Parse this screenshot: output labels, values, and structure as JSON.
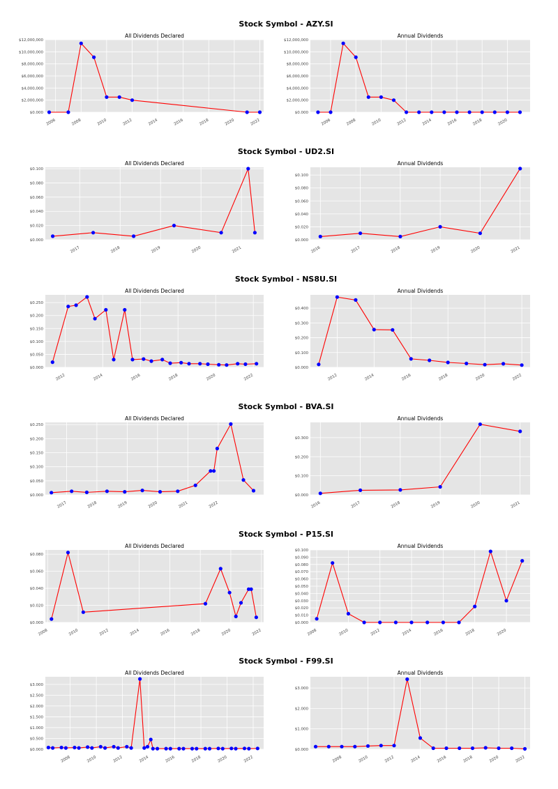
{
  "colors": {
    "panel_bg": "#e5e5e5",
    "grid": "#ffffff",
    "line": "#ff0000",
    "marker": "#0000ff"
  },
  "chart_data": [
    {
      "symbol_title": "Stock Symbol - AZY.SI",
      "panels": [
        {
          "type": "line",
          "title": "All Dividends Declared",
          "x_is_date": true,
          "x": [
            "2005-07-01",
            "2007-01-01",
            "2008-01-01",
            "2009-01-01",
            "2010-01-01",
            "2011-01-01",
            "2012-01-01",
            "2021-01-01",
            "2022-01-01"
          ],
          "y": [
            0,
            0,
            11400000,
            9100000,
            2500000,
            2500000,
            2000000,
            0,
            0
          ],
          "ylim": [
            0,
            12000000
          ],
          "yticks": [
            0,
            2000000,
            4000000,
            6000000,
            8000000,
            10000000,
            12000000
          ],
          "ytick_labels": [
            "$0.000",
            "$2,000,000",
            "$4,000,000",
            "$6,000,000",
            "$8,000,000",
            "$10,000,000",
            "$12,000,000"
          ],
          "xlim": [
            2005.2,
            2022.3
          ],
          "xticks": [
            2006,
            2008,
            2010,
            2012,
            2014,
            2016,
            2018,
            2020,
            2022
          ],
          "xtick_labels": [
            "2006",
            "2008",
            "2010",
            "2012",
            "2014",
            "2016",
            "2018",
            "2020",
            "2022"
          ]
        },
        {
          "type": "line",
          "title": "Annual Dividends",
          "x_is_date": false,
          "x": [
            2005,
            2006,
            2007,
            2008,
            2009,
            2010,
            2011,
            2012,
            2013,
            2014,
            2015,
            2016,
            2017,
            2018,
            2019,
            2020,
            2021
          ],
          "y": [
            0,
            0,
            11400000,
            9100000,
            2500000,
            2500000,
            2000000,
            0,
            0,
            0,
            0,
            0,
            0,
            0,
            0,
            0,
            0
          ],
          "ylim": [
            0,
            12000000
          ],
          "yticks": [
            0,
            2000000,
            4000000,
            6000000,
            8000000,
            10000000,
            12000000
          ],
          "ytick_labels": [
            "$0.000",
            "$2,000,000",
            "$4,000,000",
            "$6,000,000",
            "$8,000,000",
            "$10,000,000",
            "$12,000,000"
          ],
          "xlim": [
            2004.4,
            2021.8
          ],
          "xticks": [
            2006,
            2008,
            2010,
            2012,
            2014,
            2016,
            2018,
            2020
          ],
          "xtick_labels": [
            "2006",
            "2008",
            "2010",
            "2012",
            "2014",
            "2016",
            "2018",
            "2020"
          ]
        }
      ]
    },
    {
      "symbol_title": "Stock Symbol - UD2.SI",
      "panels": [
        {
          "type": "line",
          "title": "All Dividends Declared",
          "x_is_date": true,
          "x": [
            "2016-05-01",
            "2017-05-01",
            "2018-05-01",
            "2019-05-01",
            "2020-07-01",
            "2021-03-01",
            "2021-05-01"
          ],
          "y": [
            0.005,
            0.01,
            0.005,
            0.02,
            0.01,
            0.1,
            0.01
          ],
          "ylim": [
            0,
            0.102
          ],
          "yticks": [
            0,
            0.02,
            0.04,
            0.06,
            0.08,
            0.1
          ],
          "ytick_labels": [
            "$0.000",
            "$0.020",
            "$0.040",
            "$0.060",
            "$0.080",
            "$0.100"
          ],
          "xlim": [
            2016.15,
            2021.55
          ],
          "xticks": [
            2017,
            2018,
            2019,
            2020,
            2021
          ],
          "xtick_labels": [
            "2017",
            "2018",
            "2019",
            "2020",
            "2021"
          ]
        },
        {
          "type": "line",
          "title": "Annual Dividends",
          "x_is_date": false,
          "x": [
            2016,
            2017,
            2018,
            2019,
            2020,
            2021
          ],
          "y": [
            0.005,
            0.01,
            0.005,
            0.02,
            0.01,
            0.11
          ],
          "ylim": [
            0,
            0.112
          ],
          "yticks": [
            0,
            0.02,
            0.04,
            0.06,
            0.08,
            0.1
          ],
          "ytick_labels": [
            "$0.000",
            "$0.020",
            "$0.040",
            "$0.060",
            "$0.080",
            "$0.100"
          ],
          "xlim": [
            2015.75,
            2021.25
          ],
          "xticks": [
            2016,
            2017,
            2018,
            2019,
            2020,
            2021
          ],
          "xtick_labels": [
            "2016",
            "2017",
            "2018",
            "2019",
            "2020",
            "2021"
          ]
        }
      ]
    },
    {
      "symbol_title": "Stock Symbol - NS8U.SI",
      "panels": [
        {
          "type": "line",
          "title": "All Dividends Declared",
          "x_is_date": true,
          "x": [
            "2011-05-01",
            "2012-03-01",
            "2012-08-01",
            "2013-03-01",
            "2013-08-01",
            "2014-03-01",
            "2014-08-01",
            "2015-03-01",
            "2015-08-01",
            "2016-03-01",
            "2016-08-01",
            "2017-03-01",
            "2017-08-01",
            "2018-03-01",
            "2018-08-01",
            "2019-03-01",
            "2019-08-01",
            "2020-03-01",
            "2020-08-01",
            "2021-03-01",
            "2021-08-01",
            "2022-03-01"
          ],
          "y": [
            0.02,
            0.235,
            0.24,
            0.272,
            0.188,
            0.222,
            0.03,
            0.222,
            0.03,
            0.032,
            0.024,
            0.03,
            0.016,
            0.018,
            0.014,
            0.014,
            0.012,
            0.01,
            0.009,
            0.014,
            0.012,
            0.014
          ],
          "ylim": [
            0,
            0.28
          ],
          "yticks": [
            0,
            0.05,
            0.1,
            0.15,
            0.2,
            0.25
          ],
          "ytick_labels": [
            "$0.000",
            "$0.050",
            "$0.100",
            "$0.150",
            "$0.200",
            "$0.250"
          ],
          "xlim": [
            2010.95,
            2022.55
          ],
          "xticks": [
            2012,
            2014,
            2016,
            2018,
            2020,
            2022
          ],
          "xtick_labels": [
            "2012",
            "2014",
            "2016",
            "2018",
            "2020",
            "2022"
          ]
        },
        {
          "type": "line",
          "title": "Annual Dividends",
          "x_is_date": false,
          "x": [
            2011,
            2012,
            2013,
            2014,
            2015,
            2016,
            2017,
            2018,
            2019,
            2020,
            2021,
            2022
          ],
          "y": [
            0.02,
            0.475,
            0.455,
            0.255,
            0.253,
            0.057,
            0.047,
            0.033,
            0.026,
            0.018,
            0.024,
            0.015
          ],
          "ylim": [
            0,
            0.49
          ],
          "yticks": [
            0,
            0.1,
            0.2,
            0.3,
            0.4
          ],
          "ytick_labels": [
            "$0.000",
            "$0.100",
            "$0.200",
            "$0.300",
            "$0.400"
          ],
          "xlim": [
            2010.55,
            2022.45
          ],
          "xticks": [
            2012,
            2014,
            2016,
            2018,
            2020,
            2022
          ],
          "xtick_labels": [
            "2012",
            "2014",
            "2016",
            "2018",
            "2020",
            "2022"
          ]
        }
      ]
    },
    {
      "symbol_title": "Stock Symbol - BVA.SI",
      "panels": [
        {
          "type": "line",
          "title": "All Dividends Declared",
          "x_is_date": true,
          "x": [
            "2016-07-01",
            "2017-03-01",
            "2017-09-01",
            "2018-05-01",
            "2018-12-01",
            "2019-07-01",
            "2020-02-01",
            "2020-09-01",
            "2021-04-01",
            "2021-10-01",
            "2021-11-10",
            "2021-12-20",
            "2022-06-01",
            "2022-11-01",
            "2023-03-01"
          ],
          "y": [
            0.008,
            0.013,
            0.009,
            0.013,
            0.011,
            0.016,
            0.011,
            0.013,
            0.034,
            0.085,
            0.085,
            0.165,
            0.252,
            0.053,
            0.015
          ],
          "ylim": [
            0,
            0.258
          ],
          "yticks": [
            0,
            0.05,
            0.1,
            0.15,
            0.2,
            0.25
          ],
          "ytick_labels": [
            "$0.000",
            "$0.050",
            "$0.100",
            "$0.150",
            "$0.200",
            "$0.250"
          ],
          "xlim": [
            2016.3,
            2023.5
          ],
          "xticks": [
            2017,
            2018,
            2019,
            2020,
            2021,
            2022
          ],
          "xtick_labels": [
            "2017",
            "2018",
            "2019",
            "2020",
            "2021",
            "2022"
          ]
        },
        {
          "type": "line",
          "title": "Annual Dividends",
          "x_is_date": false,
          "x": [
            2016,
            2017,
            2018,
            2019,
            2020,
            2021
          ],
          "y": [
            0.008,
            0.024,
            0.026,
            0.042,
            0.37,
            0.333
          ],
          "ylim": [
            0,
            0.38
          ],
          "yticks": [
            0,
            0.1,
            0.2,
            0.3
          ],
          "ytick_labels": [
            "$0.000",
            "$0.100",
            "$0.200",
            "$0.300"
          ],
          "xlim": [
            2015.75,
            2021.25
          ],
          "xticks": [
            2016,
            2017,
            2018,
            2019,
            2020,
            2021
          ],
          "xtick_labels": [
            "2016",
            "2017",
            "2018",
            "2019",
            "2020",
            "2021"
          ]
        }
      ]
    },
    {
      "symbol_title": "Stock Symbol - P15.SI",
      "panels": [
        {
          "type": "line",
          "title": "All Dividends Declared",
          "x_is_date": true,
          "x": [
            "2008-04-01",
            "2009-05-01",
            "2010-05-01",
            "2018-05-01",
            "2019-05-01",
            "2019-12-01",
            "2020-05-01",
            "2020-09-01",
            "2021-03-01",
            "2021-05-01",
            "2021-09-01"
          ],
          "y": [
            0.004,
            0.082,
            0.012,
            0.022,
            0.063,
            0.035,
            0.007,
            0.023,
            0.039,
            0.039,
            0.006
          ],
          "ylim": [
            0,
            0.085
          ],
          "yticks": [
            0,
            0.02,
            0.04,
            0.06,
            0.08
          ],
          "ytick_labels": [
            "$0.000",
            "$0.020",
            "$0.040",
            "$0.060",
            "$0.080"
          ],
          "xlim": [
            2007.85,
            2022.15
          ],
          "xticks": [
            2008,
            2010,
            2012,
            2014,
            2016,
            2018,
            2020,
            2022
          ],
          "xtick_labels": [
            "2008",
            "2010",
            "2012",
            "2014",
            "2016",
            "2018",
            "2020",
            "2022"
          ]
        },
        {
          "type": "line",
          "title": "Annual Dividends",
          "x_is_date": false,
          "x": [
            2008,
            2009,
            2010,
            2011,
            2012,
            2013,
            2014,
            2015,
            2016,
            2017,
            2018,
            2019,
            2020,
            2021
          ],
          "y": [
            0.005,
            0.082,
            0.012,
            0,
            0,
            0,
            0,
            0,
            0,
            0,
            0.022,
            0.098,
            0.03,
            0.085
          ],
          "ylim": [
            0,
            0.1
          ],
          "yticks": [
            0,
            0.01,
            0.02,
            0.03,
            0.04,
            0.05,
            0.06,
            0.07,
            0.08,
            0.09,
            0.1
          ],
          "ytick_labels": [
            "$0.000",
            "$0.010",
            "$0.020",
            "$0.030",
            "$0.040",
            "$0.050",
            "$0.060",
            "$0.070",
            "$0.080",
            "$0.090",
            "$0.100"
          ],
          "xlim": [
            2007.6,
            2021.5
          ],
          "xticks": [
            2008,
            2010,
            2012,
            2014,
            2016,
            2018,
            2020
          ],
          "xtick_labels": [
            "2008",
            "2010",
            "2012",
            "2014",
            "2016",
            "2018",
            "2020"
          ]
        }
      ]
    },
    {
      "symbol_title": "Stock Symbol - F99.SI",
      "panels": [
        {
          "type": "line",
          "title": "All Dividends Declared",
          "x_is_date": true,
          "x": [
            "2006-05-01",
            "2006-09-01",
            "2007-05-01",
            "2007-09-01",
            "2008-05-01",
            "2008-09-01",
            "2009-05-01",
            "2009-09-01",
            "2010-05-01",
            "2010-09-01",
            "2011-05-01",
            "2011-09-01",
            "2012-05-01",
            "2012-09-01",
            "2013-05-01",
            "2013-09-01",
            "2013-12-01",
            "2014-03-01",
            "2014-05-01",
            "2014-09-01",
            "2015-05-01",
            "2015-09-01",
            "2016-05-01",
            "2016-09-01",
            "2017-05-01",
            "2017-09-01",
            "2018-05-01",
            "2018-09-01",
            "2019-05-01",
            "2019-09-01",
            "2020-05-01",
            "2020-09-01",
            "2021-05-01",
            "2021-09-01",
            "2022-05-01"
          ],
          "y": [
            0.08,
            0.06,
            0.08,
            0.06,
            0.08,
            0.06,
            0.1,
            0.06,
            0.12,
            0.06,
            0.12,
            0.06,
            0.12,
            0.06,
            3.25,
            0.06,
            0.12,
            0.45,
            0.03,
            0.03,
            0.03,
            0.03,
            0.03,
            0.03,
            0.03,
            0.03,
            0.03,
            0.03,
            0.04,
            0.03,
            0.04,
            0.03,
            0.04,
            0.03,
            0.04
          ],
          "ylim": [
            0,
            3.35
          ],
          "yticks": [
            0,
            0.5,
            1,
            1.5,
            2,
            2.5,
            3
          ],
          "ytick_labels": [
            "$0.000",
            "$0.500",
            "$1.000",
            "$1.500",
            "$2.000",
            "$2.500",
            "$3.000"
          ],
          "xlim": [
            2006.1,
            2022.8
          ],
          "xticks": [
            2008,
            2010,
            2012,
            2014,
            2016,
            2018,
            2020,
            2022
          ],
          "xtick_labels": [
            "2008",
            "2010",
            "2012",
            "2014",
            "2016",
            "2018",
            "2020",
            "2022"
          ]
        },
        {
          "type": "line",
          "title": "Annual Dividends",
          "x_is_date": false,
          "x": [
            2006,
            2007,
            2008,
            2009,
            2010,
            2011,
            2012,
            2013,
            2014,
            2015,
            2016,
            2017,
            2018,
            2019,
            2020,
            2021,
            2022
          ],
          "y": [
            0.13,
            0.13,
            0.13,
            0.13,
            0.16,
            0.18,
            0.18,
            3.43,
            0.55,
            0.05,
            0.05,
            0.05,
            0.05,
            0.07,
            0.05,
            0.05,
            0.02
          ],
          "ylim": [
            0,
            3.55
          ],
          "yticks": [
            0,
            1,
            2,
            3
          ],
          "ytick_labels": [
            "$0.000",
            "$1.000",
            "$2.000",
            "$3.000"
          ],
          "xlim": [
            2005.6,
            2022.4
          ],
          "xticks": [
            2008,
            2010,
            2012,
            2014,
            2016,
            2018,
            2020,
            2022
          ],
          "xtick_labels": [
            "2008",
            "2010",
            "2012",
            "2014",
            "2016",
            "2018",
            "2020",
            "2022"
          ]
        }
      ]
    }
  ]
}
